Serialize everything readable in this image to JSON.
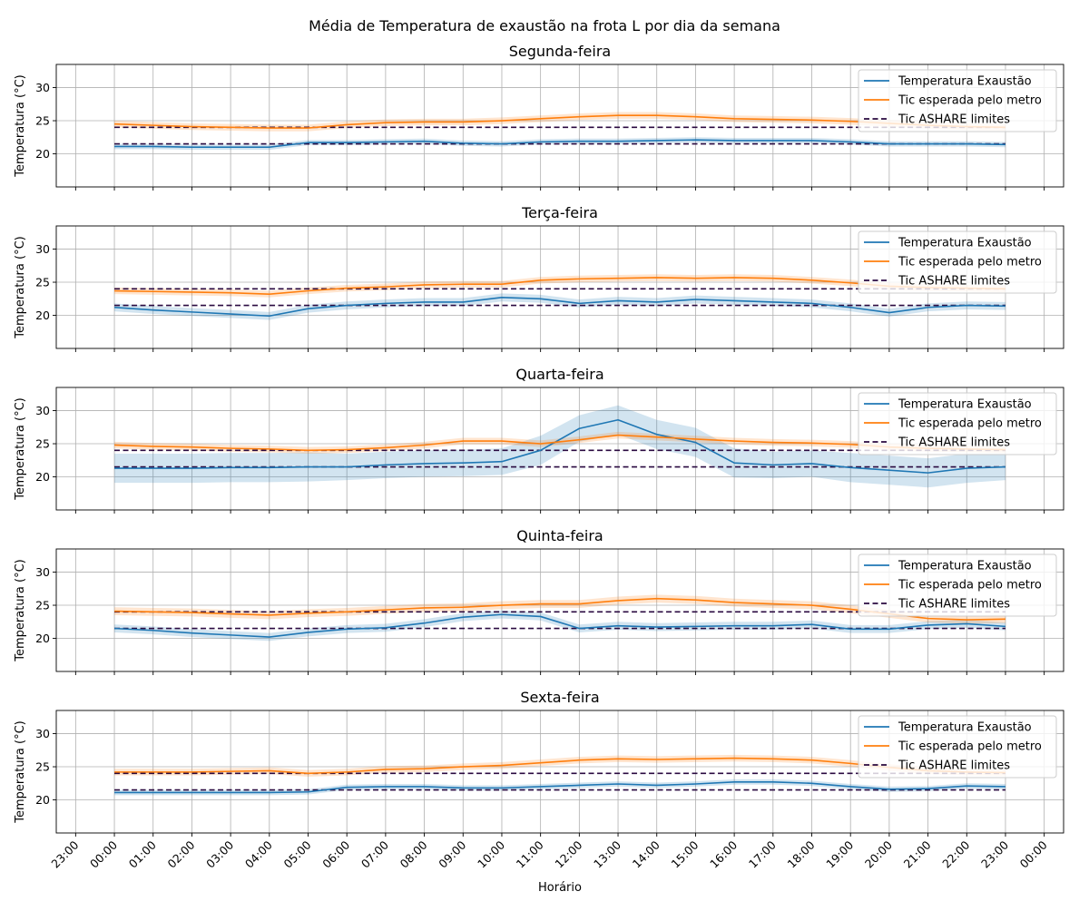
{
  "chart_data": {
    "type": "line",
    "title": "Média de Temperatura de exaustão na frota L por dia da semana",
    "xlabel": "Horário",
    "ylabel": "Temperatura (°C)",
    "ylim": [
      15,
      33.5
    ],
    "yticks": [
      20,
      25,
      30
    ],
    "xlim": [
      -1.5,
      24.5
    ],
    "xticks": [
      -1,
      0,
      1,
      2,
      3,
      4,
      5,
      6,
      7,
      8,
      9,
      10,
      11,
      12,
      13,
      14,
      15,
      16,
      17,
      18,
      19,
      20,
      21,
      22,
      23,
      24
    ],
    "xtick_labels": [
      "23:00",
      "00:00",
      "01:00",
      "02:00",
      "03:00",
      "04:00",
      "05:00",
      "06:00",
      "07:00",
      "08:00",
      "09:00",
      "10:00",
      "11:00",
      "12:00",
      "13:00",
      "14:00",
      "15:00",
      "16:00",
      "17:00",
      "18:00",
      "19:00",
      "20:00",
      "21:00",
      "22:00",
      "23:00",
      "00:00"
    ],
    "grid": true,
    "legend_position": "upper-right",
    "hours": [
      0,
      1,
      2,
      3,
      4,
      5,
      6,
      7,
      8,
      9,
      10,
      11,
      12,
      13,
      14,
      15,
      16,
      17,
      18,
      19,
      20,
      21,
      22,
      23
    ],
    "colors": {
      "exaustao": "#1f77b4",
      "esperada": "#ff7f0e",
      "ashare": "#2a0a40"
    },
    "legend": {
      "exaustao": "Temperatura Exaustão",
      "esperada": "Tic esperada pelo metro",
      "ashare": "Tic ASHARE limites"
    },
    "ashare_limits": [
      21.5,
      24
    ],
    "panels": [
      {
        "name": "Segunda-feira",
        "exaustao": [
          21.1,
          21.1,
          21.0,
          21.0,
          21.0,
          21.7,
          21.7,
          21.8,
          21.9,
          21.6,
          21.5,
          21.8,
          21.9,
          21.9,
          22.0,
          22.1,
          22.0,
          22.0,
          22.0,
          21.8,
          21.5,
          21.5,
          21.5,
          21.4
        ],
        "exaustao_band": [
          0.4,
          0.4,
          0.4,
          0.4,
          0.4,
          0.4,
          0.4,
          0.4,
          0.4,
          0.4,
          0.4,
          0.4,
          0.4,
          0.4,
          0.4,
          0.4,
          0.4,
          0.4,
          0.4,
          0.4,
          0.4,
          0.4,
          0.4,
          0.4
        ],
        "esperada": [
          24.5,
          24.3,
          24.1,
          24.0,
          23.9,
          23.9,
          24.4,
          24.7,
          24.8,
          24.8,
          25.0,
          25.3,
          25.6,
          25.8,
          25.8,
          25.6,
          25.3,
          25.2,
          25.1,
          24.9,
          24.6,
          24.3,
          24.1,
          24.0
        ],
        "esperada_band": [
          0.5,
          0.5,
          0.5,
          0.5,
          0.5,
          0.5,
          0.5,
          0.5,
          0.5,
          0.5,
          0.5,
          0.5,
          0.5,
          0.5,
          0.5,
          0.5,
          0.5,
          0.5,
          0.5,
          0.5,
          0.5,
          0.5,
          0.5,
          0.5
        ]
      },
      {
        "name": "Terça-feira",
        "exaustao": [
          21.2,
          20.8,
          20.5,
          20.2,
          19.9,
          21.0,
          21.5,
          21.8,
          22.0,
          22.0,
          22.7,
          22.5,
          21.8,
          22.2,
          22.0,
          22.4,
          22.2,
          22.0,
          21.8,
          21.2,
          20.4,
          21.2,
          21.5,
          21.4
        ],
        "exaustao_band": [
          0.6,
          0.6,
          0.6,
          0.6,
          0.6,
          0.6,
          0.6,
          0.6,
          0.6,
          0.6,
          0.6,
          0.6,
          0.6,
          0.6,
          0.6,
          0.6,
          0.6,
          0.6,
          0.6,
          0.6,
          0.6,
          0.6,
          0.6,
          0.6
        ],
        "esperada": [
          23.7,
          23.6,
          23.5,
          23.4,
          23.2,
          23.7,
          24.1,
          24.3,
          24.6,
          24.7,
          24.7,
          25.3,
          25.5,
          25.6,
          25.7,
          25.6,
          25.7,
          25.6,
          25.3,
          24.9,
          24.4,
          24.2,
          24.1,
          24.0
        ],
        "esperada_band": [
          0.5,
          0.5,
          0.5,
          0.5,
          0.5,
          0.5,
          0.5,
          0.5,
          0.5,
          0.5,
          0.5,
          0.5,
          0.5,
          0.5,
          0.5,
          0.5,
          0.5,
          0.5,
          0.5,
          0.5,
          0.5,
          0.5,
          0.5,
          0.5
        ]
      },
      {
        "name": "Quarta-feira",
        "exaustao": [
          21.3,
          21.3,
          21.3,
          21.4,
          21.4,
          21.5,
          21.5,
          21.8,
          22.0,
          22.1,
          22.3,
          24.0,
          27.3,
          28.6,
          26.4,
          25.2,
          22.1,
          21.8,
          22.0,
          21.4,
          21.0,
          20.6,
          21.3,
          21.5
        ],
        "exaustao_band": [
          2.2,
          2.2,
          2.2,
          2.2,
          2.2,
          2.2,
          2.0,
          2.0,
          2.0,
          2.0,
          2.0,
          2.2,
          2.0,
          2.2,
          2.2,
          2.2,
          2.2,
          2.0,
          2.0,
          2.2,
          2.2,
          2.2,
          2.2,
          2.0
        ],
        "esperada": [
          24.8,
          24.6,
          24.5,
          24.3,
          24.2,
          24.0,
          24.1,
          24.4,
          24.8,
          25.4,
          25.4,
          25.0,
          25.6,
          26.3,
          26.0,
          25.7,
          25.4,
          25.2,
          25.1,
          24.9,
          24.5,
          24.3,
          24.2,
          24.1
        ],
        "esperada_band": [
          0.5,
          0.5,
          0.5,
          0.5,
          0.5,
          0.5,
          0.5,
          0.5,
          0.5,
          0.5,
          0.5,
          0.5,
          0.5,
          0.5,
          0.5,
          0.5,
          0.5,
          0.5,
          0.5,
          0.5,
          0.5,
          0.5,
          0.5,
          0.5
        ]
      },
      {
        "name": "Quinta-feira",
        "exaustao": [
          21.5,
          21.2,
          20.8,
          20.5,
          20.2,
          20.9,
          21.4,
          21.6,
          22.3,
          23.2,
          23.6,
          23.3,
          21.5,
          21.9,
          21.7,
          21.8,
          21.9,
          21.9,
          22.1,
          21.4,
          21.4,
          22.0,
          22.2,
          21.8
        ],
        "exaustao_band": [
          0.6,
          0.6,
          0.6,
          0.6,
          0.6,
          0.6,
          0.6,
          0.6,
          0.6,
          0.6,
          0.6,
          0.6,
          0.6,
          0.6,
          0.6,
          0.6,
          0.6,
          0.6,
          0.6,
          0.6,
          0.6,
          0.6,
          0.6,
          0.6
        ],
        "esperada": [
          24.1,
          24.0,
          23.9,
          23.7,
          23.5,
          23.8,
          24.0,
          24.3,
          24.6,
          24.7,
          25.0,
          25.2,
          25.2,
          25.7,
          26.0,
          25.8,
          25.4,
          25.2,
          25.0,
          24.4,
          23.7,
          23.0,
          22.8,
          22.9
        ],
        "esperada_band": [
          0.6,
          0.6,
          0.6,
          0.6,
          0.6,
          0.6,
          0.6,
          0.6,
          0.6,
          0.6,
          0.6,
          0.6,
          0.6,
          0.6,
          0.6,
          0.6,
          0.6,
          0.6,
          0.6,
          0.6,
          0.6,
          0.6,
          0.6,
          0.6
        ]
      },
      {
        "name": "Sexta-feira",
        "exaustao": [
          21.1,
          21.1,
          21.1,
          21.1,
          21.1,
          21.2,
          21.9,
          22.0,
          22.0,
          21.8,
          21.8,
          22.0,
          22.2,
          22.4,
          22.2,
          22.4,
          22.7,
          22.7,
          22.5,
          22.0,
          21.6,
          21.7,
          22.1,
          22.0
        ],
        "exaustao_band": [
          0.4,
          0.4,
          0.4,
          0.4,
          0.4,
          0.4,
          0.4,
          0.4,
          0.4,
          0.4,
          0.4,
          0.4,
          0.4,
          0.4,
          0.4,
          0.4,
          0.4,
          0.4,
          0.4,
          0.4,
          0.4,
          0.4,
          0.4,
          0.4
        ],
        "esperada": [
          24.2,
          24.2,
          24.2,
          24.3,
          24.4,
          24.0,
          24.2,
          24.6,
          24.7,
          25.0,
          25.2,
          25.6,
          26.0,
          26.2,
          26.1,
          26.2,
          26.3,
          26.2,
          26.0,
          25.5,
          24.9,
          24.4,
          24.2,
          24.1
        ],
        "esperada_band": [
          0.5,
          0.5,
          0.5,
          0.5,
          0.5,
          0.5,
          0.5,
          0.5,
          0.5,
          0.5,
          0.5,
          0.5,
          0.5,
          0.5,
          0.5,
          0.5,
          0.5,
          0.5,
          0.5,
          0.5,
          0.5,
          0.5,
          0.5,
          0.5
        ]
      }
    ]
  }
}
